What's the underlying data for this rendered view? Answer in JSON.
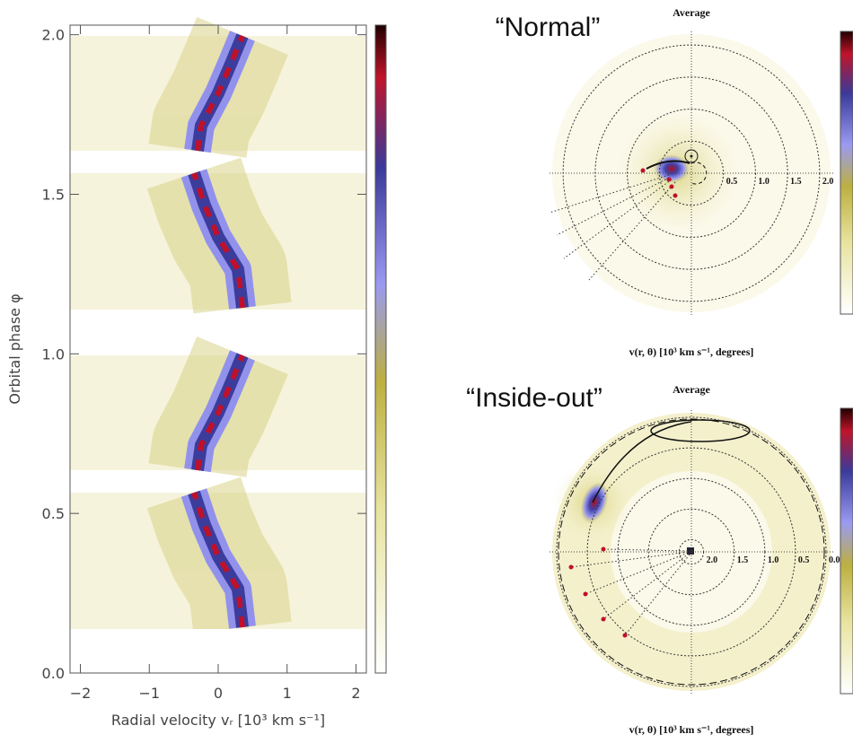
{
  "chart_data": [
    {
      "type": "trailed-spectrum",
      "xlabel": "Radial velocity vᵣ [10³ km s⁻¹]",
      "ylabel": "Orbital phase φ",
      "xlim": [
        -2.15,
        2.15
      ],
      "ylim": [
        0,
        2.03
      ],
      "xticks": [
        {
          "value": -2,
          "label": "−2"
        },
        {
          "value": -1,
          "label": "−1"
        },
        0,
        1,
        2
      ],
      "yticks": [
        {
          "value": 0,
          "label": "0.0"
        },
        0.5,
        {
          "value": 1,
          "label": "1.0"
        },
        1.5,
        {
          "value": 2,
          "label": "2.0"
        }
      ]
    },
    {
      "type": "doppler-map",
      "annotation": "“Normal”",
      "title": "Average",
      "xlabel": "v(r, θ) [10³ km s⁻¹, degrees]",
      "rlim": [
        0,
        2.1
      ],
      "rticks": [
        0.5,
        {
          "value": 1,
          "label": "1.0"
        },
        1.5,
        {
          "value": 2,
          "label": "2.0"
        }
      ]
    },
    {
      "type": "doppler-map",
      "annotation": "“Inside-out”",
      "title": "Average",
      "xlabel": "v(r, θ) [10³ km s⁻¹, degrees]",
      "rlim": [
        2.2,
        0
      ],
      "rticks": [
        {
          "value": 2,
          "label": "2.0"
        },
        1.5,
        {
          "value": 1,
          "label": "1.0"
        },
        0.5,
        {
          "value": 0,
          "label": "0.0"
        }
      ]
    }
  ]
}
